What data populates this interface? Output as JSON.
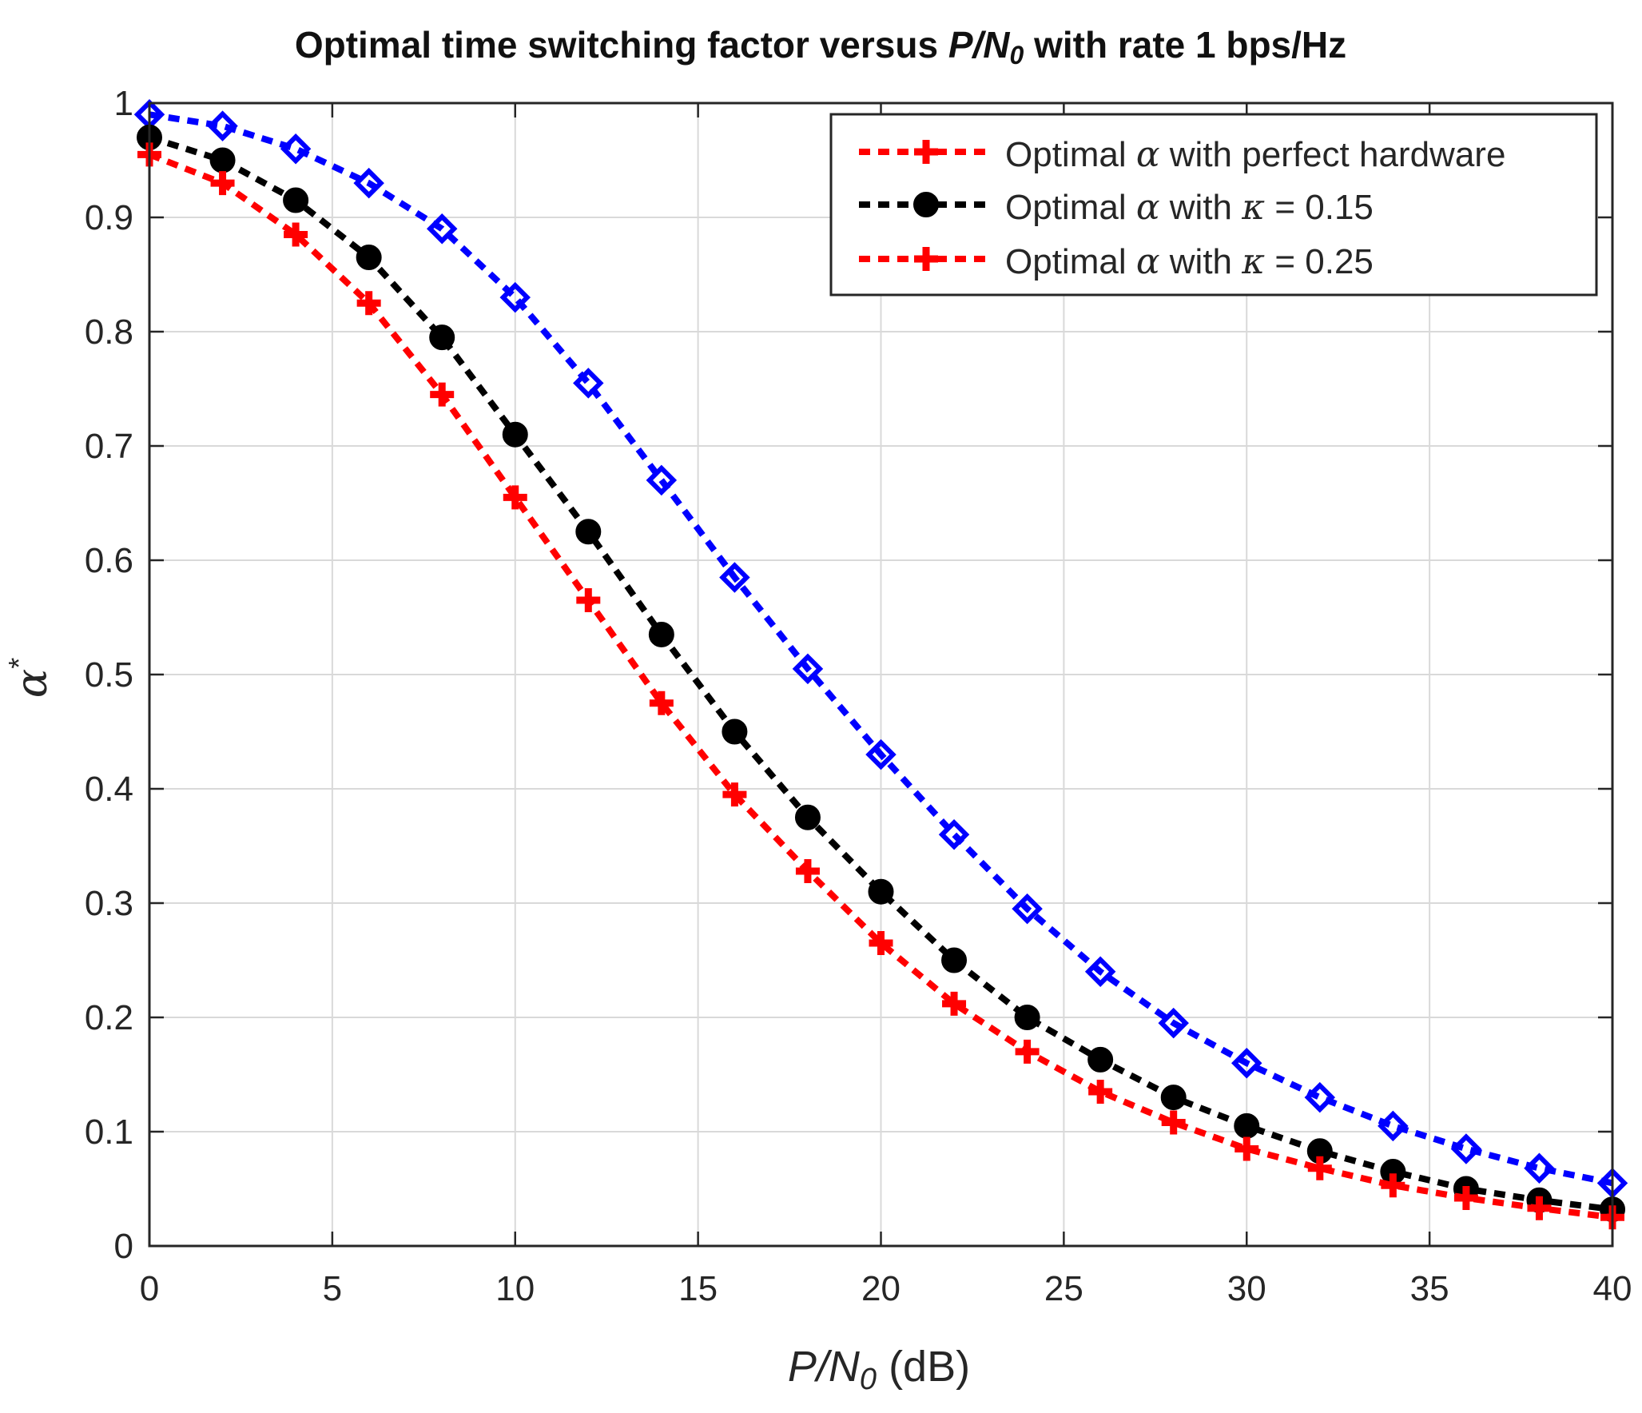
{
  "chart_data": {
    "type": "line",
    "title": {
      "prefix": "Optimal time switching factor versus ",
      "var_main": "P/N",
      "var_sub": "0",
      "suffix": " with rate 1 bps/Hz"
    },
    "xlabel": {
      "var_main": "P/N",
      "var_sub": "0",
      "unit": " (dB)"
    },
    "ylabel": {
      "main": "α",
      "sup": "*"
    },
    "xlim": [
      0,
      40
    ],
    "ylim": [
      0,
      1
    ],
    "xticks": [
      0,
      5,
      10,
      15,
      20,
      25,
      30,
      35,
      40
    ],
    "yticks": [
      0,
      0.1,
      0.2,
      0.3,
      0.4,
      0.5,
      0.6,
      0.7,
      0.8,
      0.9,
      1
    ],
    "grid": true,
    "legend_position": "top-right",
    "x": [
      0,
      2,
      4,
      6,
      8,
      10,
      12,
      14,
      16,
      18,
      20,
      22,
      24,
      26,
      28,
      30,
      32,
      34,
      36,
      38,
      40
    ],
    "series": [
      {
        "id": "perfect",
        "legend": {
          "prefix": "Optimal ",
          "greek": "α",
          "suffix": " with perfect hardware"
        },
        "color": "#0000ff",
        "legend_color": "#ff0000",
        "marker": "diamond",
        "legend_marker": "plus",
        "values": [
          0.99,
          0.98,
          0.96,
          0.93,
          0.89,
          0.83,
          0.755,
          0.67,
          0.585,
          0.505,
          0.43,
          0.36,
          0.295,
          0.24,
          0.195,
          0.16,
          0.13,
          0.105,
          0.085,
          0.068,
          0.055
        ]
      },
      {
        "id": "kappa015",
        "legend": {
          "prefix": "Optimal ",
          "greek": "α",
          "suffix": " with ",
          "kappa": "κ",
          "value": " = 0.15"
        },
        "color": "#000000",
        "legend_color": "#000000",
        "marker": "circle",
        "legend_marker": "circle",
        "values": [
          0.97,
          0.95,
          0.915,
          0.865,
          0.795,
          0.71,
          0.625,
          0.535,
          0.45,
          0.375,
          0.31,
          0.25,
          0.2,
          0.163,
          0.13,
          0.105,
          0.083,
          0.065,
          0.05,
          0.04,
          0.032
        ]
      },
      {
        "id": "kappa025",
        "legend": {
          "prefix": "Optimal ",
          "greek": "α",
          "suffix": " with ",
          "kappa": "κ",
          "value": " = 0.25"
        },
        "color": "#ff0000",
        "legend_color": "#ff0000",
        "marker": "plus",
        "legend_marker": "plus",
        "values": [
          0.955,
          0.93,
          0.885,
          0.825,
          0.745,
          0.655,
          0.565,
          0.475,
          0.395,
          0.328,
          0.265,
          0.212,
          0.17,
          0.135,
          0.108,
          0.085,
          0.068,
          0.053,
          0.042,
          0.033,
          0.025
        ]
      }
    ]
  }
}
